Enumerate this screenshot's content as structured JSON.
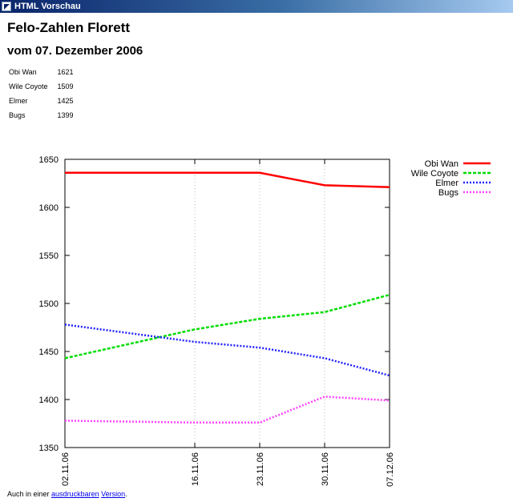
{
  "window": {
    "title": "HTML Vorschau"
  },
  "page": {
    "heading": "Felo-Zahlen Florett",
    "subheading": "vom 07. Dezember 2006"
  },
  "scores": [
    {
      "name": "Obi Wan",
      "value": "1621"
    },
    {
      "name": "Wile Coyote",
      "value": "1509"
    },
    {
      "name": "Elmer",
      "value": "1425"
    },
    {
      "name": "Bugs",
      "value": "1399"
    }
  ],
  "chart_data": {
    "type": "line",
    "x": [
      "02.11.06",
      "16.11.06",
      "23.11.06",
      "30.11.06",
      "07.12.06"
    ],
    "x_days": [
      0,
      14,
      21,
      28,
      35
    ],
    "ylim": [
      1350,
      1650
    ],
    "yticks": [
      1350,
      1400,
      1450,
      1500,
      1550,
      1600,
      1650
    ],
    "grid": "vertical dotted at x ticks",
    "legend_position": "top-right outside",
    "series": [
      {
        "name": "Obi Wan",
        "color": "#ff0000",
        "dash": "solid",
        "values": [
          1636,
          1636,
          1636,
          1623,
          1621
        ]
      },
      {
        "name": "Wile Coyote",
        "color": "#00dd00",
        "dash": "dashed",
        "values": [
          1443,
          1473,
          1484,
          1491,
          1509
        ]
      },
      {
        "name": "Elmer",
        "color": "#2222ff",
        "dash": "dotted",
        "values": [
          1478,
          1460,
          1454,
          1443,
          1425
        ]
      },
      {
        "name": "Bugs",
        "color": "#ff44ff",
        "dash": "dotted",
        "values": [
          1378,
          1376,
          1376,
          1403,
          1399
        ]
      }
    ]
  },
  "footer": {
    "prefix": "Auch in einer ",
    "link1": "ausdruckbaren",
    "link2": "Version",
    "suffix": "."
  }
}
